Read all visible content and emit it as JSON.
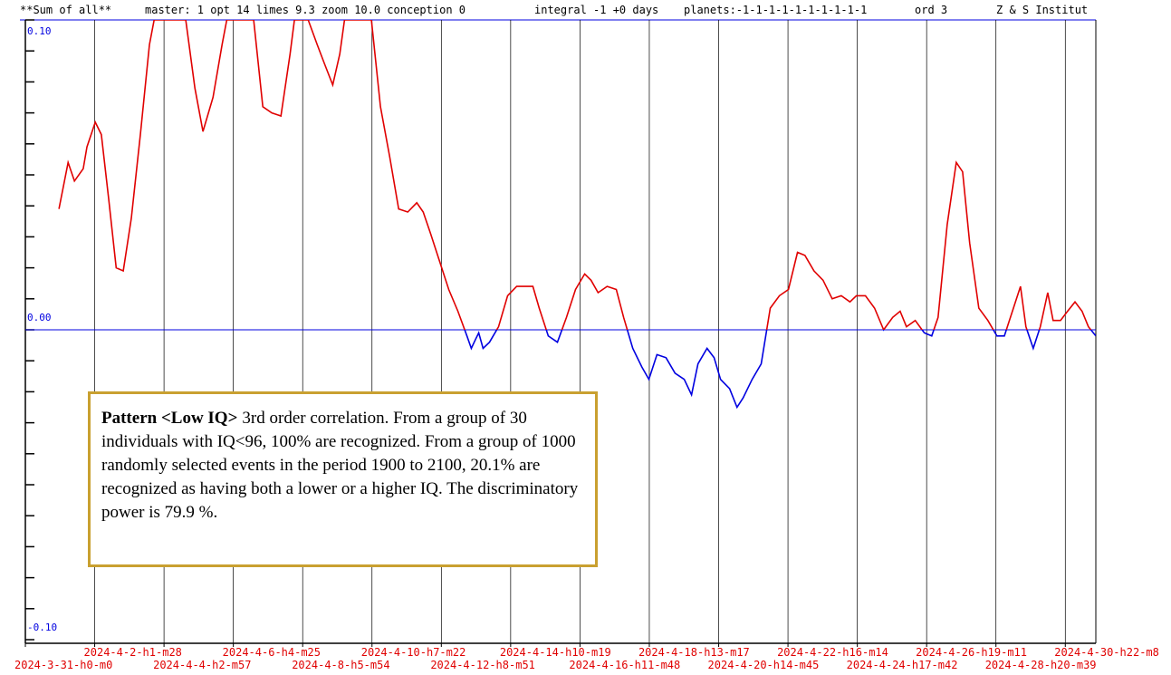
{
  "chart_data": {
    "type": "line",
    "header": [
      "**Sum of all**",
      "master: 1  opt 14 limes 9.3 zoom 10.0 conception 0",
      "integral -1 +0 days",
      "planets:-1-1-1-1-1-1-1-1-1-1",
      "ord 3",
      "Z & S Institut"
    ],
    "annotation": {
      "bold": "Pattern <Low IQ>",
      "text": "3rd order correlation. From a group of 30 individuals with IQ<96, 100% are recognized. From a group of 1000 randomly selected events in the period 1900 to 2100, 20.1% are recognized as having both a lower or a higher IQ. The discriminatory power is 79.9 %."
    },
    "xlim": [
      0,
      31.83
    ],
    "xticks": [
      {
        "value": 0,
        "label": "2024-3-31-h0-m0"
      },
      {
        "value": 2.061,
        "label": "2024-4-2-h1-m28"
      },
      {
        "value": 4.123,
        "label": "2024-4-4-h2-m57"
      },
      {
        "value": 6.184,
        "label": "2024-4-6-h4-m25"
      },
      {
        "value": 8.246,
        "label": "2024-4-8-h5-m54"
      },
      {
        "value": 10.307,
        "label": "2024-4-10-h7-m22"
      },
      {
        "value": 12.369,
        "label": "2024-4-12-h8-m51"
      },
      {
        "value": 14.43,
        "label": "2024-4-14-h10-m19"
      },
      {
        "value": 16.492,
        "label": "2024-4-16-h11-m48"
      },
      {
        "value": 18.553,
        "label": "2024-4-18-h13-m17"
      },
      {
        "value": 20.615,
        "label": "2024-4-20-h14-m45"
      },
      {
        "value": 22.676,
        "label": "2024-4-22-h16-m14"
      },
      {
        "value": 24.738,
        "label": "2024-4-24-h17-m42"
      },
      {
        "value": 26.799,
        "label": "2024-4-26-h19-m11"
      },
      {
        "value": 28.86,
        "label": "2024-4-28-h20-m39"
      },
      {
        "value": 30.922,
        "label": "2024-4-30-h22-m8"
      }
    ],
    "ylim": [
      -0.1,
      0.1
    ],
    "yticks": [
      {
        "value": 0.1,
        "label": "0.10"
      },
      {
        "value": 0,
        "label": "0.00"
      },
      {
        "value": -0.1,
        "label": "-0.10"
      }
    ],
    "yticks_minor": [
      -0.09,
      -0.08,
      -0.07,
      -0.06,
      -0.05,
      -0.04,
      -0.03,
      -0.02,
      -0.01,
      0.01,
      0.02,
      0.03,
      0.04,
      0.05,
      0.06,
      0.07,
      0.08,
      0.09
    ],
    "grid": true,
    "series": [
      {
        "color": "#e00000",
        "negative_color": "#0000e0",
        "x": [
          1.0,
          1.27,
          1.46,
          1.72,
          1.83,
          2.08,
          2.26,
          2.48,
          2.7,
          2.91,
          3.15,
          3.42,
          3.69,
          3.83,
          4.77,
          5.04,
          5.28,
          5.58,
          5.85,
          5.99,
          6.79,
          7.06,
          7.33,
          7.6,
          7.87,
          8.0,
          8.41,
          8.68,
          8.89,
          9.14,
          9.35,
          9.49,
          10.29,
          10.56,
          10.83,
          11.1,
          11.37,
          11.64,
          11.83,
          12.05,
          12.32,
          12.59,
          12.86,
          13.13,
          13.26,
          13.39,
          13.48,
          13.61,
          13.8,
          14.07,
          14.34,
          14.61,
          14.88,
          15.09,
          15.28,
          15.55,
          15.82,
          16.09,
          16.36,
          16.63,
          16.82,
          17.03,
          17.3,
          17.57,
          17.79,
          18.06,
          18.33,
          18.54,
          18.78,
          19.05,
          19.32,
          19.59,
          19.81,
          20.0,
          20.27,
          20.48,
          20.67,
          20.94,
          21.16,
          21.34,
          21.61,
          21.88,
          22.15,
          22.42,
          22.69,
          22.96,
          23.18,
          23.45,
          23.72,
          23.99,
          24.26,
          24.52,
          24.71,
          24.98,
          25.25,
          25.52,
          25.79,
          26.01,
          26.2,
          26.46,
          26.73,
          26.95,
          27.14,
          27.41,
          27.68,
          27.87,
          28.08,
          28.35,
          28.62,
          28.89,
          29.11,
          29.38,
          29.59,
          29.75,
          29.97,
          30.18,
          30.4,
          30.56,
          30.78,
          30.99,
          31.21,
          31.42,
          31.61,
          31.83
        ],
        "values": [
          0.039,
          0.054,
          0.048,
          0.052,
          0.059,
          0.067,
          0.063,
          0.042,
          0.02,
          0.019,
          0.036,
          0.063,
          0.092,
          0.1,
          0.1,
          0.078,
          0.064,
          0.075,
          0.092,
          0.1,
          0.1,
          0.072,
          0.07,
          0.069,
          0.089,
          0.1,
          0.1,
          0.092,
          0.086,
          0.079,
          0.089,
          0.1,
          0.1,
          0.072,
          0.056,
          0.039,
          0.038,
          0.041,
          0.038,
          0.031,
          0.022,
          0.013,
          0.006,
          -0.002,
          -0.006,
          -0.003,
          -0.001,
          -0.006,
          -0.004,
          0.001,
          0.011,
          0.014,
          0.014,
          0.014,
          0.007,
          -0.002,
          -0.004,
          0.004,
          0.013,
          0.018,
          0.016,
          0.012,
          0.014,
          0.013,
          0.004,
          -0.006,
          -0.012,
          -0.016,
          -0.008,
          -0.009,
          -0.014,
          -0.016,
          -0.021,
          -0.011,
          -0.006,
          -0.009,
          -0.016,
          -0.019,
          -0.025,
          -0.022,
          -0.016,
          -0.011,
          0.007,
          0.011,
          0.013,
          0.025,
          0.024,
          0.019,
          0.016,
          0.01,
          0.011,
          0.009,
          0.011,
          0.011,
          0.007,
          0,
          0.004,
          0.006,
          0.001,
          0.003,
          -0.001,
          -0.002,
          0.004,
          0.034,
          0.054,
          0.051,
          0.028,
          0.007,
          0.003,
          -0.002,
          -0.002,
          0.007,
          0.014,
          0.001,
          -0.006,
          0.001,
          0.012,
          0.003,
          0.003,
          0.006,
          0.009,
          0.006,
          0.001,
          -0.002
        ]
      }
    ]
  }
}
